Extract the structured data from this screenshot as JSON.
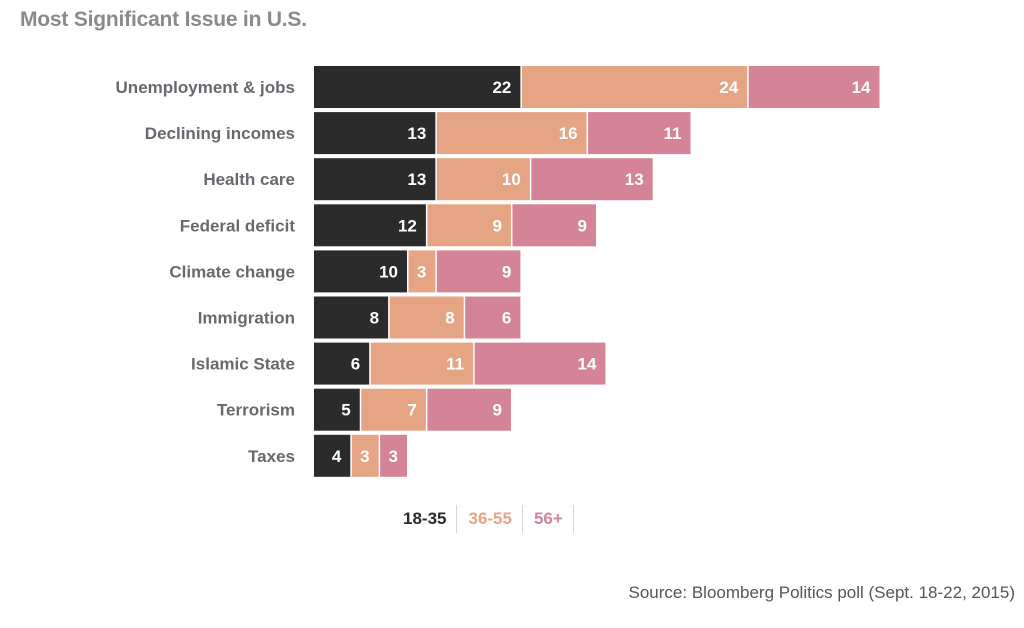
{
  "title": "Most Significant Issue in U.S.",
  "source": "Source: Bloomberg Politics poll (Sept. 18-22, 2015)",
  "colors": {
    "label_text": "#666a6e",
    "value_text_dark": "#ffffff",
    "value_text_light": "#ffffff"
  },
  "chart_data": {
    "type": "bar",
    "orientation": "horizontal",
    "stacked": true,
    "title": "Most Significant Issue in U.S.",
    "categories": [
      "Unemployment & jobs",
      "Declining incomes",
      "Health care",
      "Federal deficit",
      "Climate change",
      "Immigration",
      "Islamic State",
      "Terrorism",
      "Taxes"
    ],
    "series": [
      {
        "name": "18-35",
        "color": "#2b2b2b",
        "values": [
          22,
          13,
          13,
          12,
          10,
          8,
          6,
          5,
          4
        ]
      },
      {
        "name": "36-55",
        "color": "#e5a584",
        "values": [
          24,
          16,
          10,
          9,
          3,
          8,
          11,
          7,
          3
        ]
      },
      {
        "name": "56+",
        "color": "#d48496",
        "values": [
          14,
          11,
          13,
          9,
          9,
          6,
          14,
          9,
          3
        ]
      }
    ],
    "legend_position": "bottom",
    "grid": false,
    "xlabel": "",
    "ylabel": "",
    "source": "Source: Bloomberg Politics poll (Sept. 18-22, 2015)"
  }
}
